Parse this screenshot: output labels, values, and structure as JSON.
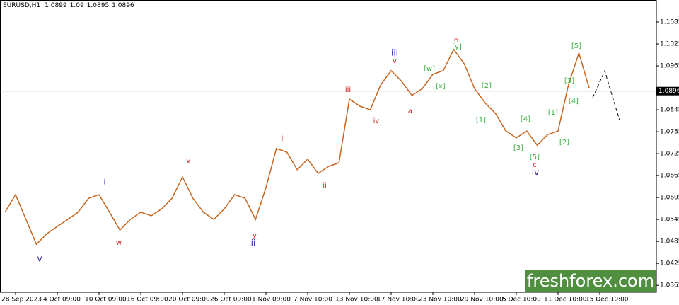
{
  "chart_data": {
    "type": "line",
    "title": "EURUSD,H1",
    "ohlc": [
      1.0899,
      1.09,
      1.0895,
      1.0896
    ],
    "categories": [
      null,
      "28 Sep 2023",
      null,
      null,
      null,
      "4 Oct 09:00",
      null,
      null,
      null,
      "10 Oct 09:00",
      null,
      null,
      null,
      "16 Oct 09:00",
      null,
      null,
      null,
      "20 Oct 09:00",
      null,
      null,
      null,
      "26 Oct 09:00",
      null,
      null,
      null,
      "1 Nov 09:00",
      null,
      null,
      null,
      "7 Nov 10:00",
      null,
      null,
      null,
      "13 Nov 10:00",
      null,
      null,
      null,
      "17 Nov 10:00",
      null,
      null,
      null,
      "23 Nov 10:00",
      null,
      null,
      null,
      "29 Nov 10:00",
      null,
      null,
      null,
      "5 Dec 10:00",
      null,
      null,
      null,
      "11 Dec 10:00",
      null,
      null,
      null,
      "15 Dec 10:00"
    ],
    "series": [
      {
        "color": "#c8641e",
        "values": [
          1.0565,
          1.0613,
          1.0545,
          1.0477,
          1.0506,
          1.0526,
          1.0545,
          1.0565,
          1.0603,
          1.0613,
          1.0565,
          1.0516,
          1.0545,
          1.0565,
          1.0555,
          1.0574,
          1.0603,
          1.0661,
          1.0603,
          1.0565,
          1.0545,
          1.0574,
          1.0613,
          1.0603,
          1.0545,
          1.0632,
          1.0739,
          1.0729,
          1.0681,
          1.071,
          1.0671,
          1.069,
          1.07,
          1.0874,
          1.0855,
          1.0845,
          1.0913,
          1.0952,
          1.0923,
          1.0884,
          1.0903,
          1.0942,
          1.0952,
          1.101,
          1.0971,
          1.0903,
          1.0864,
          1.0835,
          1.0787,
          1.0768,
          1.0787,
          1.0748,
          1.0777,
          1.0787,
          1.0913,
          1.1,
          1.0903,
          null
        ]
      }
    ],
    "current_price": 1.0896,
    "ylim": [
      1.0346,
      1.1145
    ],
    "yticks": [
      1.0365,
      1.0425,
      1.0485,
      1.0545,
      1.0605,
      1.0665,
      1.0725,
      1.0785,
      1.0845,
      1.0965,
      1.1025,
      1.1085
    ],
    "annotations": [
      {
        "text": "v",
        "color": "#1f1fa0"
      },
      {
        "text": "i",
        "color": "#1f1fa0"
      },
      {
        "text": "w",
        "color": "#d12020"
      },
      {
        "text": "x",
        "color": "#d12020"
      },
      {
        "text": "y",
        "color": "#d12020"
      },
      {
        "text": "ii",
        "color": "#1f1fa0"
      },
      {
        "text": "i",
        "color": "#d12020"
      },
      {
        "text": "ii",
        "color": "#d12020"
      },
      {
        "text": "iii",
        "color": "#d12020"
      },
      {
        "text": "iv",
        "color": "#d12020"
      },
      {
        "text": "iii",
        "color": "#1f1fa0"
      },
      {
        "text": "v",
        "color": "#d12020"
      },
      {
        "text": "a",
        "color": "#d12020"
      },
      {
        "text": "[w]",
        "color": "#3cb043"
      },
      {
        "text": "[x]",
        "color": "#3cb043"
      },
      {
        "text": "b",
        "color": "#d12020"
      },
      {
        "text": "[y]",
        "color": "#3cb043"
      },
      {
        "text": "[2]",
        "color": "#3cb043"
      },
      {
        "text": "[1]",
        "color": "#3cb043"
      },
      {
        "text": "[3]",
        "color": "#3cb043"
      },
      {
        "text": "[4]",
        "color": "#3cb043"
      },
      {
        "text": "[5]",
        "color": "#3cb043"
      },
      {
        "text": "c",
        "color": "#d12020"
      },
      {
        "text": "iv",
        "color": "#1f1fa0"
      },
      {
        "text": "[1]",
        "color": "#3cb043"
      },
      {
        "text": "[2]",
        "color": "#3cb043"
      },
      {
        "text": "[3]",
        "color": "#3cb043"
      },
      {
        "text": "[4]",
        "color": "#3cb043"
      },
      {
        "text": "[5]",
        "color": "#3cb043"
      }
    ],
    "watermark": "freshforex.com"
  }
}
